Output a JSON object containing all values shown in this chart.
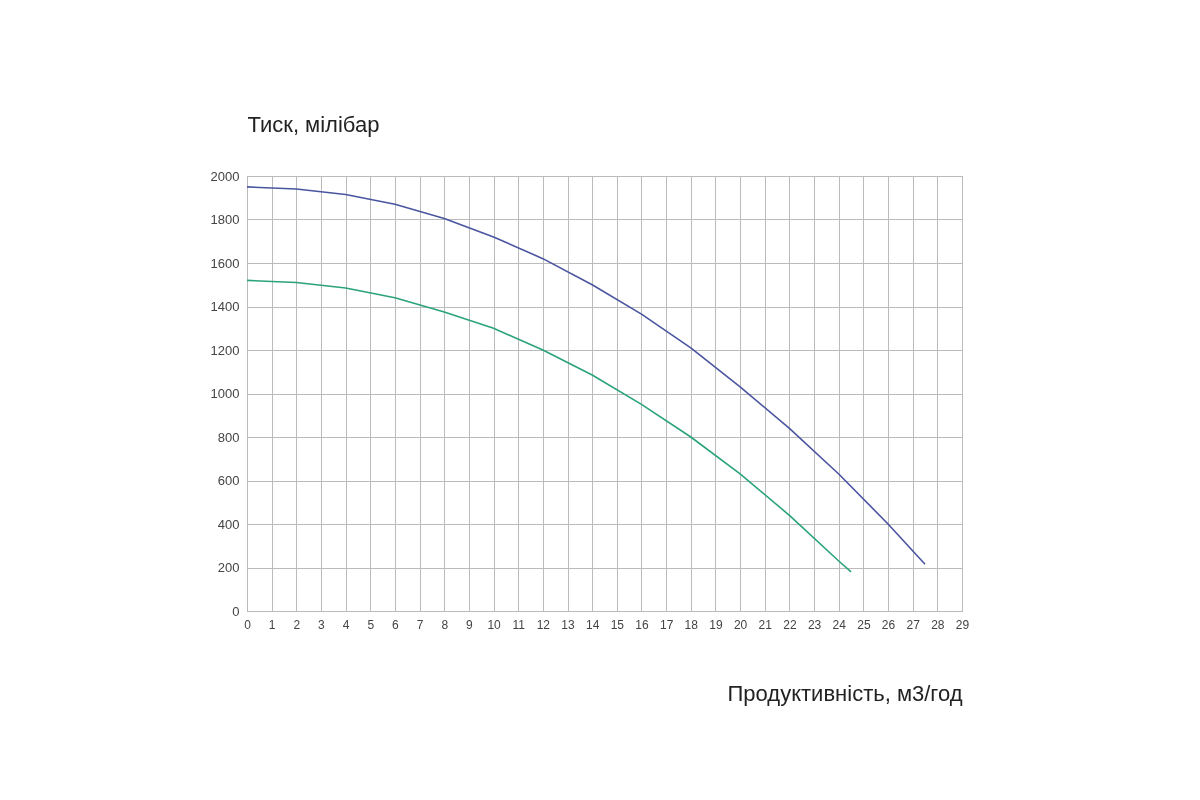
{
  "chart_data": {
    "type": "line",
    "xlabel": "Продуктивність, м3/год",
    "ylabel": "Тиск, мілібар",
    "xlim": [
      0,
      29
    ],
    "xticks": [
      0,
      1,
      2,
      3,
      4,
      5,
      6,
      7,
      8,
      9,
      10,
      11,
      12,
      13,
      14,
      15,
      16,
      17,
      18,
      19,
      20,
      21,
      22,
      23,
      24,
      25,
      26,
      27,
      28,
      29
    ],
    "ylim": [
      0,
      2000
    ],
    "yticks": [
      0,
      200,
      400,
      600,
      800,
      1000,
      1200,
      1400,
      1600,
      1800,
      2000
    ],
    "grid": true,
    "marker": "none",
    "line_style": "solid",
    "series": [
      {
        "color": "#4a55a0",
        "x": [
          0,
          2,
          4,
          6,
          8,
          10,
          12,
          14,
          16,
          18,
          20,
          22,
          24,
          26,
          27.5
        ],
        "values": [
          1950,
          1940,
          1915,
          1870,
          1805,
          1720,
          1620,
          1500,
          1365,
          1210,
          1030,
          840,
          630,
          400,
          215
        ]
      },
      {
        "color": "#2aa37a",
        "x": [
          0,
          2,
          4,
          6,
          8,
          10,
          12,
          14,
          16,
          18,
          20,
          22,
          24,
          24.5
        ],
        "values": [
          1520,
          1510,
          1485,
          1440,
          1375,
          1300,
          1200,
          1085,
          950,
          800,
          630,
          440,
          230,
          180
        ]
      }
    ]
  }
}
